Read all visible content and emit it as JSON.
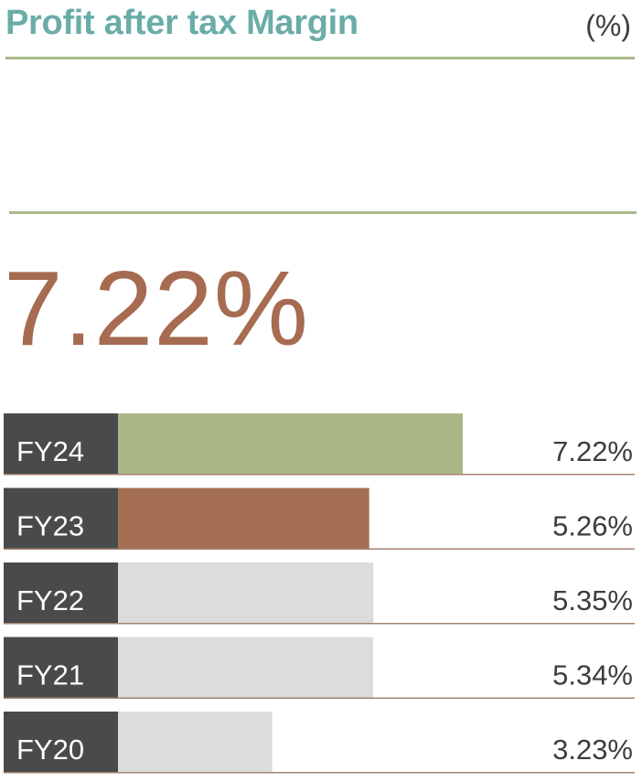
{
  "header": {
    "title": "Profit after tax Margin",
    "unit": "(%)"
  },
  "highlight": {
    "value": "7.22%"
  },
  "colors": {
    "title": "#6aaca8",
    "highlight": "#a66b50",
    "label_bg": "#4a4a4c",
    "bar_current": "#a9b886",
    "bar_previous": "#a46f52",
    "bar_other": "#dcdcdd",
    "row_line": "#a6836f"
  },
  "chart_data": {
    "type": "bar",
    "orientation": "horizontal",
    "title": "Profit after tax Margin",
    "unit": "(%)",
    "categories": [
      "FY24",
      "FY23",
      "FY22",
      "FY21",
      "FY20"
    ],
    "values": [
      7.22,
      5.26,
      5.35,
      5.34,
      3.23
    ],
    "value_labels": [
      "7.22%",
      "5.26%",
      "5.35%",
      "5.34%",
      "3.23%"
    ],
    "xlim": [
      0,
      10.5
    ],
    "grid": false,
    "legend": false
  }
}
